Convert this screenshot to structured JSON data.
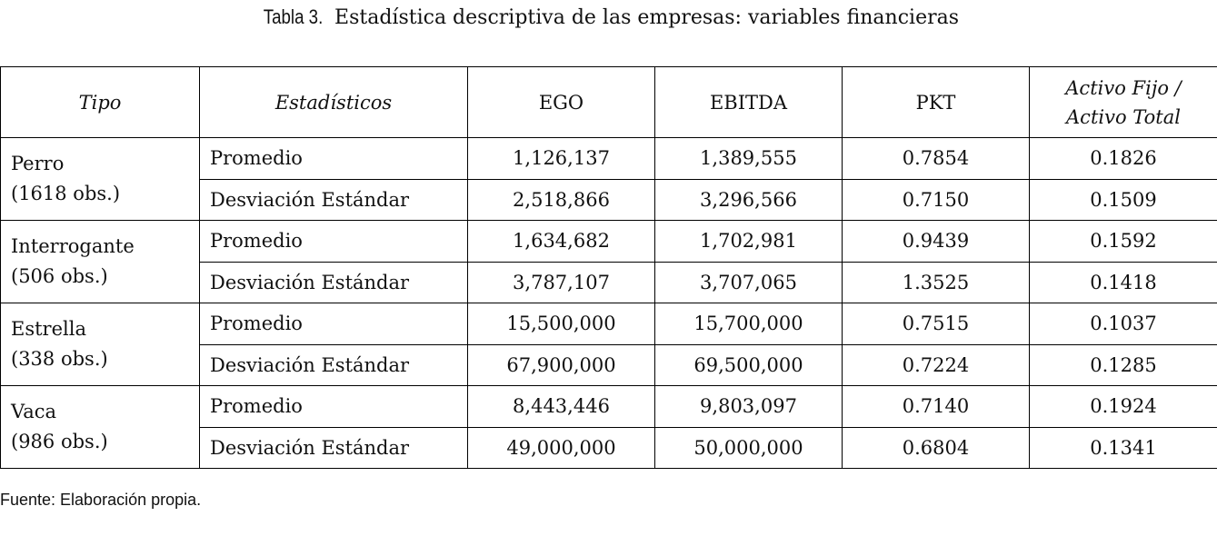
{
  "header": {
    "label": "Tabla 3.",
    "title": "Estadística descriptiva de las empresas: variables financieras"
  },
  "table": {
    "columns": [
      "Tipo",
      "Estadísticos",
      "EGO",
      "EBITDA",
      "PKT",
      [
        "Activo Fijo /",
        "Activo Total"
      ]
    ],
    "groups": [
      {
        "name": "Perro",
        "obs": "(1618 obs.)",
        "rows": [
          {
            "stat": "Promedio",
            "values": [
              "1,126,137",
              "1,389,555",
              "0.7854",
              "0.1826"
            ]
          },
          {
            "stat": "Desviación Estándar",
            "values": [
              "2,518,866",
              "3,296,566",
              "0.7150",
              "0.1509"
            ]
          }
        ]
      },
      {
        "name": "Interrogante",
        "obs": "(506 obs.)",
        "rows": [
          {
            "stat": "Promedio",
            "values": [
              "1,634,682",
              "1,702,981",
              "0.9439",
              "0.1592"
            ]
          },
          {
            "stat": "Desviación Estándar",
            "values": [
              "3,787,107",
              "3,707,065",
              "1.3525",
              "0.1418"
            ]
          }
        ]
      },
      {
        "name": "Estrella",
        "obs": "(338 obs.)",
        "rows": [
          {
            "stat": "Promedio",
            "values": [
              "15,500,000",
              "15,700,000",
              "0.7515",
              "0.1037"
            ]
          },
          {
            "stat": "Desviación Estándar",
            "values": [
              "67,900,000",
              "69,500,000",
              "0.7224",
              "0.1285"
            ]
          }
        ]
      },
      {
        "name": "Vaca",
        "obs": "(986 obs.)",
        "rows": [
          {
            "stat": "Promedio",
            "values": [
              "8,443,446",
              "9,803,097",
              "0.7140",
              "0.1924"
            ]
          },
          {
            "stat": "Desviación Estándar",
            "values": [
              "49,000,000",
              "50,000,000",
              "0.6804",
              "0.1341"
            ]
          }
        ]
      }
    ]
  },
  "footer": {
    "source": "Fuente: Elaboración propia."
  }
}
